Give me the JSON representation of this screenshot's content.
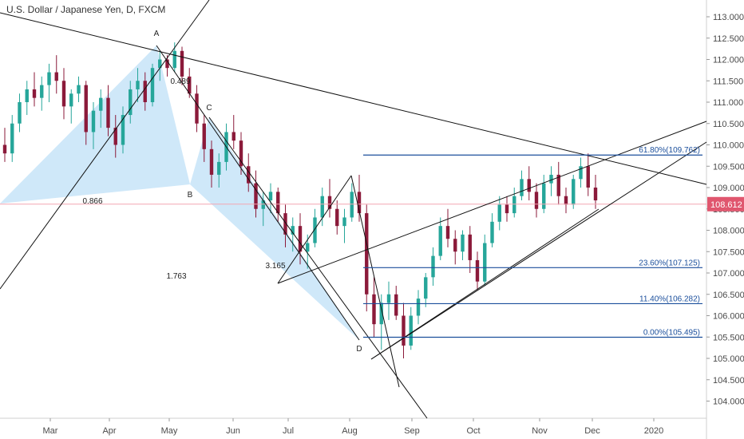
{
  "title": "U.S. Dollar / Japanese Yen, D, FXCM",
  "chart_data": {
    "type": "candlestick",
    "y_ticks": [
      "113.000",
      "112.500",
      "112.000",
      "111.500",
      "111.000",
      "110.500",
      "110.000",
      "109.500",
      "109.000",
      "108.500",
      "108.000",
      "107.500",
      "107.000",
      "106.500",
      "106.000",
      "105.500",
      "105.000",
      "104.500",
      "104.000"
    ],
    "x_ticks": [
      "Mar",
      "Apr",
      "May",
      "Jun",
      "Jul",
      "Aug",
      "Sep",
      "Oct",
      "Nov",
      "Dec",
      "2020"
    ],
    "ylim": [
      103.6,
      113.3
    ],
    "last_price": 108.612,
    "last_price_label": "108.612",
    "series": [
      {
        "name": "candles",
        "values": [
          [
            110.0,
            110.4,
            109.6,
            109.8
          ],
          [
            109.8,
            110.7,
            109.6,
            110.5
          ],
          [
            110.5,
            111.2,
            110.3,
            111.0
          ],
          [
            111.0,
            111.5,
            110.7,
            111.3
          ],
          [
            111.3,
            111.7,
            110.9,
            111.1
          ],
          [
            111.1,
            111.6,
            110.8,
            111.4
          ],
          [
            111.4,
            111.9,
            111.0,
            111.7
          ],
          [
            111.7,
            112.1,
            111.2,
            111.5
          ],
          [
            111.5,
            111.8,
            110.6,
            110.9
          ],
          [
            110.9,
            111.3,
            110.5,
            111.2
          ],
          [
            111.2,
            111.6,
            111.0,
            111.4
          ],
          [
            111.4,
            111.5,
            110.0,
            110.3
          ],
          [
            110.3,
            111.0,
            109.9,
            110.8
          ],
          [
            110.8,
            111.3,
            110.4,
            111.1
          ],
          [
            111.1,
            111.4,
            110.2,
            110.4
          ],
          [
            110.4,
            110.7,
            109.7,
            110.0
          ],
          [
            110.0,
            110.9,
            109.8,
            110.7
          ],
          [
            110.7,
            111.5,
            110.5,
            111.3
          ],
          [
            111.3,
            111.8,
            111.0,
            111.5
          ],
          [
            111.5,
            111.7,
            110.8,
            111.0
          ],
          [
            111.0,
            111.9,
            110.9,
            111.8
          ],
          [
            111.8,
            112.2,
            111.5,
            112.0
          ],
          [
            112.0,
            112.1,
            111.6,
            111.8
          ],
          [
            111.8,
            112.4,
            111.7,
            112.2
          ],
          [
            112.2,
            112.3,
            111.4,
            111.6
          ],
          [
            111.6,
            111.8,
            111.1,
            111.2
          ],
          [
            111.2,
            111.4,
            110.3,
            110.5
          ],
          [
            110.5,
            110.7,
            109.6,
            109.9
          ],
          [
            109.9,
            110.1,
            109.0,
            109.3
          ],
          [
            109.3,
            109.8,
            109.0,
            109.6
          ],
          [
            109.6,
            110.5,
            109.4,
            110.3
          ],
          [
            110.3,
            110.7,
            109.9,
            110.1
          ],
          [
            110.1,
            110.3,
            109.3,
            109.5
          ],
          [
            109.5,
            109.8,
            108.9,
            109.1
          ],
          [
            109.1,
            109.4,
            108.3,
            108.5
          ],
          [
            108.5,
            108.9,
            108.1,
            108.7
          ],
          [
            108.7,
            109.1,
            108.4,
            108.9
          ],
          [
            108.9,
            109.0,
            108.2,
            108.4
          ],
          [
            108.4,
            108.6,
            107.6,
            107.9
          ],
          [
            107.9,
            108.3,
            107.5,
            108.1
          ],
          [
            108.1,
            108.4,
            107.2,
            107.5
          ],
          [
            107.5,
            107.9,
            107.1,
            107.7
          ],
          [
            107.7,
            108.5,
            107.6,
            108.3
          ],
          [
            108.3,
            109.0,
            108.1,
            108.8
          ],
          [
            108.8,
            109.2,
            108.3,
            108.5
          ],
          [
            108.5,
            108.7,
            107.9,
            108.1
          ],
          [
            108.1,
            108.5,
            107.7,
            108.3
          ],
          [
            108.3,
            109.1,
            108.2,
            108.9
          ],
          [
            108.9,
            109.3,
            108.2,
            108.4
          ],
          [
            108.4,
            108.6,
            106.1,
            106.5
          ],
          [
            106.5,
            106.9,
            105.5,
            105.8
          ],
          [
            105.8,
            106.5,
            105.2,
            106.3
          ],
          [
            106.3,
            106.8,
            105.9,
            106.5
          ],
          [
            106.5,
            106.7,
            105.9,
            106.0
          ],
          [
            106.0,
            106.3,
            105.0,
            105.3
          ],
          [
            105.3,
            106.2,
            105.2,
            106.0
          ],
          [
            106.0,
            106.6,
            105.8,
            106.4
          ],
          [
            106.4,
            107.0,
            106.2,
            106.9
          ],
          [
            106.9,
            107.6,
            106.7,
            107.4
          ],
          [
            107.4,
            108.3,
            107.3,
            108.1
          ],
          [
            108.1,
            108.5,
            107.6,
            107.8
          ],
          [
            107.8,
            108.0,
            107.2,
            107.5
          ],
          [
            107.5,
            108.0,
            107.3,
            107.9
          ],
          [
            107.9,
            108.1,
            107.0,
            107.3
          ],
          [
            107.3,
            107.5,
            106.6,
            106.8
          ],
          [
            106.8,
            107.9,
            106.7,
            107.7
          ],
          [
            107.7,
            108.4,
            107.6,
            108.2
          ],
          [
            108.2,
            108.8,
            108.0,
            108.6
          ],
          [
            108.6,
            108.8,
            108.2,
            108.4
          ],
          [
            108.4,
            109.0,
            108.3,
            108.8
          ],
          [
            108.8,
            109.4,
            108.7,
            109.2
          ],
          [
            109.2,
            109.5,
            108.7,
            108.9
          ],
          [
            108.9,
            109.1,
            108.3,
            108.5
          ],
          [
            108.5,
            109.3,
            108.4,
            109.1
          ],
          [
            109.1,
            109.5,
            108.8,
            109.3
          ],
          [
            109.3,
            109.6,
            108.6,
            108.8
          ],
          [
            108.8,
            109.0,
            108.4,
            108.6
          ],
          [
            108.6,
            109.3,
            108.5,
            109.2
          ],
          [
            109.2,
            109.7,
            109.0,
            109.5
          ],
          [
            109.5,
            109.8,
            108.8,
            109.0
          ],
          [
            109.0,
            109.3,
            108.5,
            108.7
          ]
        ]
      }
    ],
    "pattern_labels": {
      "A": "A",
      "B": "B",
      "C": "C",
      "D": "D"
    },
    "ratio_labels": [
      "0.866",
      "1.763",
      "0.489",
      "3.165"
    ],
    "fib_levels": [
      {
        "label": "61.80%(109.762)",
        "price": 109.762
      },
      {
        "label": "23.60%(107.125)",
        "price": 107.125
      },
      {
        "label": "11.40%(106.282)",
        "price": 106.282
      },
      {
        "label": "0.00%(105.495)",
        "price": 105.495
      }
    ],
    "colors": {
      "up": "#26a69a",
      "down": "#8b1a3a",
      "fib": "#1b4f9c",
      "pattern": "#bfe0f7",
      "price_line": "#f4a6b2",
      "price_tag": "#e0566e",
      "trend": "#111111"
    }
  }
}
